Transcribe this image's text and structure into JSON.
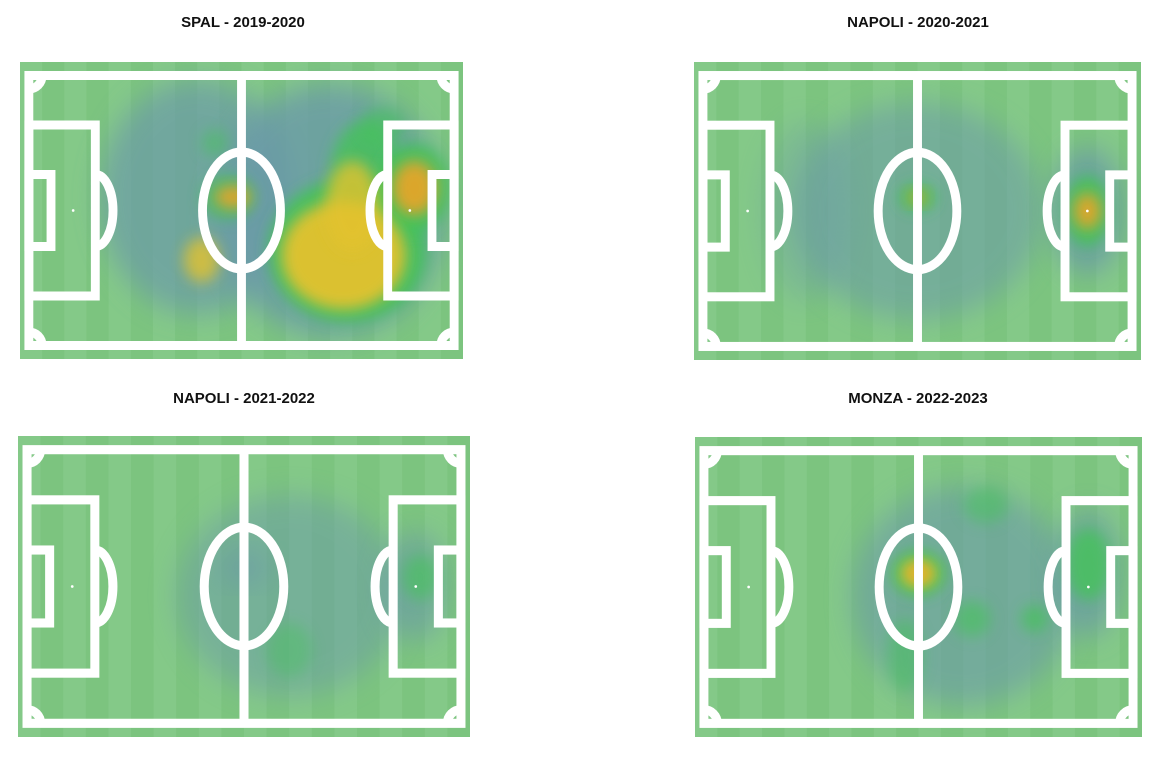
{
  "panels": [
    {
      "title": "SPAL - 2019-2020"
    },
    {
      "title": "NAPOLI - 2020-2021"
    },
    {
      "title": "NAPOLI - 2021-2022"
    },
    {
      "title": "MONZA - 2022-2023"
    }
  ]
}
